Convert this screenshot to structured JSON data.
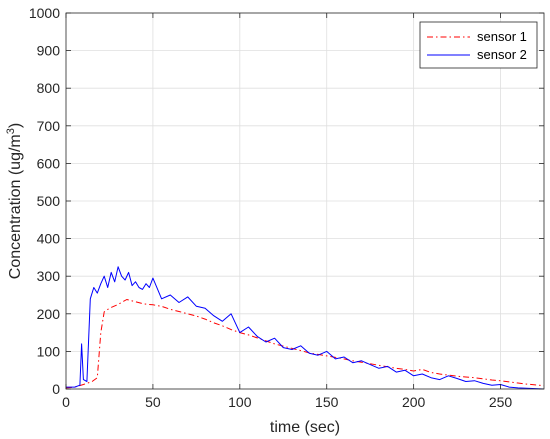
{
  "chart_data": {
    "type": "line",
    "xlabel": "time (sec)",
    "ylabel": "Concentration (ug/m",
    "ylabel_superscript": "3",
    "ylabel_close": ")",
    "xlim": [
      0,
      275
    ],
    "ylim": [
      0,
      1000
    ],
    "xticks": [
      0,
      50,
      100,
      150,
      200,
      250
    ],
    "yticks": [
      0,
      100,
      200,
      300,
      400,
      500,
      600,
      700,
      800,
      900,
      1000
    ],
    "grid": true,
    "legend_position": "top-right",
    "series": [
      {
        "name": "sensor 1",
        "color": "#ff0000",
        "style": "dash-dot",
        "x": [
          0,
          5,
          10,
          15,
          18,
          20,
          22,
          25,
          30,
          35,
          40,
          45,
          50,
          55,
          60,
          65,
          70,
          75,
          80,
          85,
          90,
          95,
          100,
          105,
          110,
          115,
          120,
          125,
          130,
          135,
          140,
          145,
          150,
          155,
          160,
          165,
          170,
          175,
          180,
          185,
          190,
          195,
          200,
          205,
          210,
          215,
          220,
          225,
          230,
          235,
          240,
          245,
          250,
          255,
          260,
          265,
          270,
          275
        ],
        "y": [
          3,
          5,
          12,
          20,
          30,
          150,
          205,
          215,
          225,
          238,
          232,
          226,
          224,
          220,
          212,
          206,
          200,
          194,
          186,
          176,
          168,
          158,
          150,
          144,
          136,
          128,
          120,
          114,
          108,
          102,
          96,
          92,
          88,
          84,
          80,
          75,
          71,
          67,
          63,
          59,
          55,
          52,
          48,
          52,
          44,
          40,
          37,
          34,
          32,
          30,
          27,
          24,
          22,
          19,
          16,
          13,
          11,
          9
        ]
      },
      {
        "name": "sensor 2",
        "color": "#0000ff",
        "style": "solid",
        "x": [
          0,
          5,
          8,
          9,
          10,
          12,
          14,
          16,
          18,
          20,
          22,
          24,
          26,
          28,
          30,
          32,
          34,
          36,
          38,
          40,
          42,
          44,
          46,
          48,
          50,
          55,
          60,
          65,
          70,
          75,
          80,
          85,
          90,
          95,
          100,
          105,
          110,
          115,
          120,
          125,
          130,
          135,
          140,
          145,
          150,
          155,
          160,
          165,
          170,
          175,
          180,
          185,
          190,
          195,
          200,
          205,
          210,
          215,
          220,
          225,
          230,
          235,
          240,
          245,
          250,
          255,
          260,
          265,
          270,
          275
        ],
        "y": [
          5,
          5,
          10,
          120,
          25,
          20,
          240,
          270,
          255,
          280,
          300,
          270,
          310,
          285,
          325,
          300,
          290,
          310,
          275,
          285,
          270,
          265,
          280,
          270,
          295,
          240,
          250,
          230,
          245,
          220,
          215,
          195,
          180,
          200,
          150,
          165,
          140,
          125,
          135,
          110,
          105,
          115,
          95,
          90,
          100,
          80,
          85,
          70,
          75,
          65,
          55,
          60,
          45,
          50,
          35,
          40,
          30,
          25,
          35,
          28,
          20,
          22,
          15,
          10,
          12,
          5,
          3,
          2,
          1,
          0
        ]
      }
    ]
  }
}
